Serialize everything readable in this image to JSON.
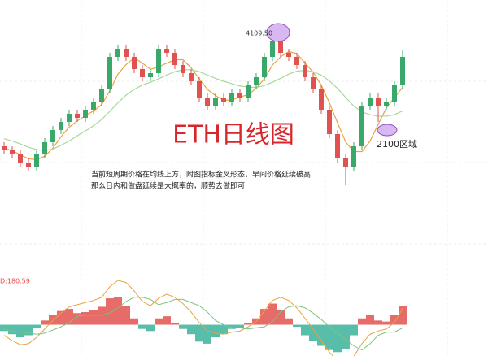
{
  "chart_data": {
    "type": "candlestick",
    "title": "ETH日线图",
    "high_label": "4109.50",
    "zone_label": "2100区域",
    "commentary": [
      "当前短周期价格在均线上方，附图指标金叉形态，早间价格延续破高",
      "那么日内和做盘延续是大概率的，顺势去做即可"
    ],
    "up_color": "#3aa86b",
    "down_color": "#e0524f",
    "ylim": [
      380,
      4800
    ],
    "open": [
      1740,
      1655,
      1570,
      1400,
      1315,
      1570,
      1825,
      2080,
      2250,
      2420,
      2335,
      2505,
      2675,
      2930,
      3610,
      3780,
      3610,
      3355,
      3185,
      3270,
      3780,
      3695,
      3440,
      3270,
      3100,
      2760,
      2590,
      2760,
      2675,
      2845,
      2760,
      3015,
      3185,
      3610,
      3950,
      3695,
      3610,
      3440,
      3185,
      2930,
      2505,
      1995,
      1485,
      1315,
      1740,
      2590,
      2760,
      2590,
      2675,
      3015
    ],
    "high": [
      1825,
      1740,
      1655,
      1485,
      1655,
      1910,
      2165,
      2335,
      2505,
      2505,
      2590,
      2760,
      3015,
      3695,
      3865,
      3865,
      3695,
      3440,
      3355,
      3865,
      3865,
      3780,
      3525,
      3355,
      3185,
      2845,
      2845,
      2845,
      2930,
      2930,
      3100,
      3270,
      3695,
      4109.5,
      4035,
      3780,
      3695,
      3525,
      3270,
      3015,
      2590,
      2080,
      1570,
      1825,
      2675,
      2845,
      2845,
      2760,
      3100,
      3746
    ],
    "low": [
      1570,
      1485,
      1315,
      1230,
      1230,
      1485,
      1740,
      1995,
      2165,
      2250,
      2250,
      2420,
      2590,
      2845,
      3525,
      3525,
      3270,
      3100,
      3100,
      3185,
      3610,
      3355,
      3185,
      3015,
      2675,
      2505,
      2505,
      2590,
      2590,
      2675,
      2675,
      2930,
      3100,
      3525,
      3610,
      3525,
      3355,
      3100,
      2845,
      2420,
      1910,
      1400,
      924,
      1230,
      1655,
      2505,
      2250,
      2505,
      2590,
      2930
    ],
    "close": [
      1655,
      1570,
      1400,
      1315,
      1570,
      1825,
      2080,
      2250,
      2420,
      2335,
      2505,
      2675,
      2930,
      3610,
      3780,
      3610,
      3355,
      3185,
      3270,
      3780,
      3695,
      3440,
      3270,
      3100,
      2760,
      2590,
      2760,
      2675,
      2845,
      2760,
      3015,
      3185,
      3610,
      3950,
      3695,
      3610,
      3440,
      3185,
      2930,
      2505,
      1995,
      1485,
      1315,
      1740,
      2590,
      2760,
      2590,
      2675,
      3015,
      3610
    ],
    "overlays": [
      {
        "color": "#e8a33d",
        "values": [
          1700,
          1650,
          1560,
          1480,
          1460,
          1530,
          1700,
          1940,
          2140,
          2270,
          2380,
          2480,
          2610,
          2900,
          3250,
          3450,
          3590,
          3480,
          3350,
          3400,
          3480,
          3550,
          3550,
          3380,
          3150,
          2930,
          2800,
          2700,
          2710,
          2770,
          2820,
          2950,
          3150,
          3440,
          3610,
          3720,
          3680,
          3480,
          3290,
          3020,
          2650,
          2230,
          1830,
          1630,
          1630,
          1850,
          2200,
          2540,
          2760,
          2970
        ]
      },
      {
        "color": "#a9d89a",
        "values": [
          1900,
          1850,
          1790,
          1720,
          1670,
          1650,
          1680,
          1760,
          1850,
          1960,
          2060,
          2170,
          2300,
          2470,
          2650,
          2810,
          2930,
          3020,
          3080,
          3150,
          3230,
          3300,
          3340,
          3340,
          3300,
          3230,
          3160,
          3100,
          3050,
          3000,
          2980,
          2970,
          3010,
          3080,
          3160,
          3250,
          3310,
          3330,
          3300,
          3230,
          3110,
          2950,
          2760,
          2580,
          2460,
          2400,
          2370,
          2370,
          2400,
          2480
        ]
      }
    ],
    "macd": {
      "label": "D:180.59",
      "ylim": [
        -250,
        420
      ],
      "up_color": "#e0524f",
      "down_color": "#3cb39a",
      "dif_color": "#e8a33d",
      "dea_color": "#7cc47a",
      "histogram": [
        -60,
        -90,
        -120,
        -100,
        -30,
        40,
        90,
        130,
        150,
        110,
        120,
        140,
        170,
        250,
        260,
        180,
        60,
        -40,
        -60,
        60,
        80,
        20,
        -40,
        -90,
        -160,
        -180,
        -120,
        -90,
        -40,
        -30,
        20,
        60,
        150,
        200,
        140,
        60,
        -20,
        -100,
        -150,
        -200,
        -240,
        -260,
        -230,
        -100,
        60,
        90,
        40,
        30,
        90,
        180.59
      ],
      "dif": [
        -100,
        -150,
        -190,
        -180,
        -120,
        -40,
        40,
        110,
        170,
        190,
        210,
        230,
        260,
        360,
        420,
        400,
        320,
        220,
        180,
        250,
        290,
        260,
        200,
        120,
        20,
        -60,
        -80,
        -90,
        -70,
        -60,
        -20,
        30,
        130,
        230,
        260,
        230,
        160,
        60,
        -40,
        -150,
        -260,
        -340,
        -370,
        -300,
        -180,
        -90,
        -60,
        -40,
        20,
        150
      ],
      "dea": [
        -40,
        -60,
        -70,
        -80,
        -90,
        -80,
        -50,
        -20,
        20,
        80,
        90,
        90,
        90,
        110,
        160,
        220,
        260,
        260,
        240,
        190,
        210,
        240,
        240,
        210,
        180,
        120,
        40,
        0,
        -30,
        -30,
        -40,
        -30,
        -20,
        30,
        120,
        170,
        180,
        160,
        110,
        50,
        -20,
        -80,
        -140,
        -200,
        -240,
        -180,
        -100,
        -70,
        -70,
        -30
      ]
    }
  }
}
